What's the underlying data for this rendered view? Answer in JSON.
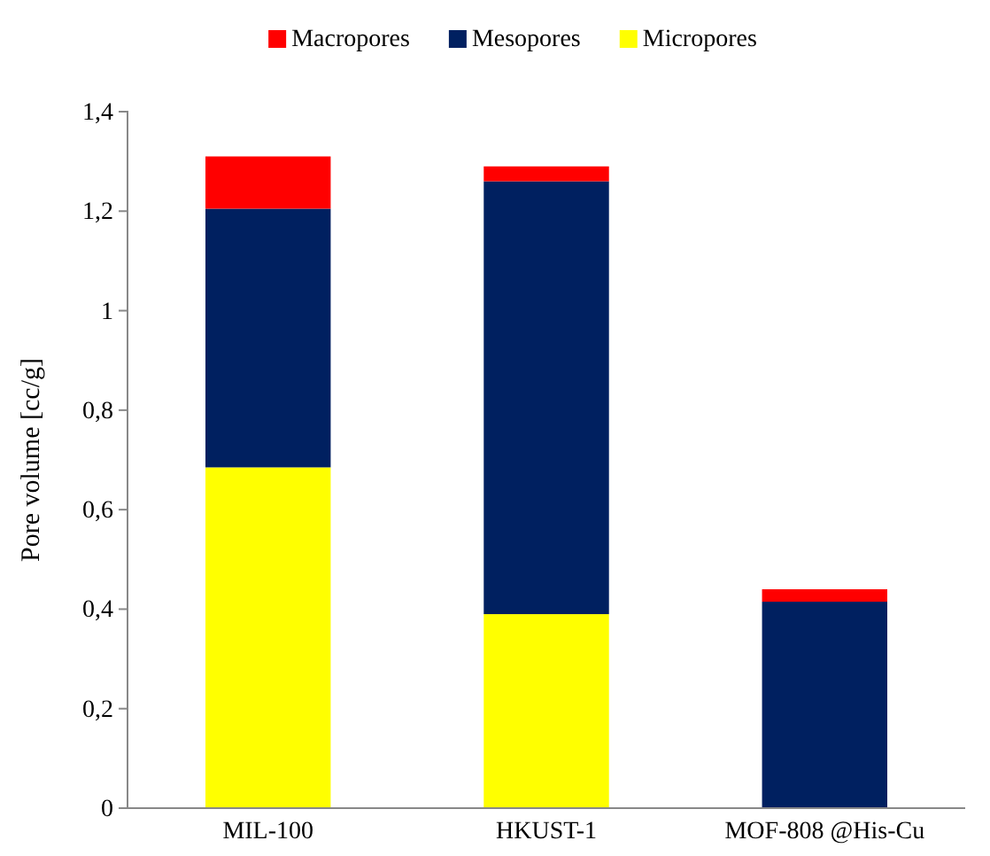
{
  "chart_data": {
    "type": "bar",
    "stacked": true,
    "ylabel": "Pore volume [cc/g]",
    "categories": [
      "MIL-100",
      "HKUST-1",
      "MOF-808 @His-Cu"
    ],
    "series": [
      {
        "name": "Micropores",
        "color": "#ffff00",
        "values": [
          0.685,
          0.39,
          0
        ]
      },
      {
        "name": "Mesopores",
        "color": "#002060",
        "values": [
          0.52,
          0.87,
          0.415
        ]
      },
      {
        "name": "Macropores",
        "color": "#ff0000",
        "values": [
          0.105,
          0.03,
          0.025
        ]
      }
    ],
    "ylim": [
      0,
      1.4
    ],
    "yticks": [
      0,
      {
        "value": 0.2,
        "label": "0,2"
      },
      {
        "value": 0.4,
        "label": "0,4"
      },
      {
        "value": 0.6,
        "label": "0,6"
      },
      {
        "value": 0.8,
        "label": "0,8"
      },
      1,
      {
        "value": 1.2,
        "label": "1,2"
      },
      {
        "value": 1.4,
        "label": "1,4"
      }
    ],
    "legend": "top"
  }
}
